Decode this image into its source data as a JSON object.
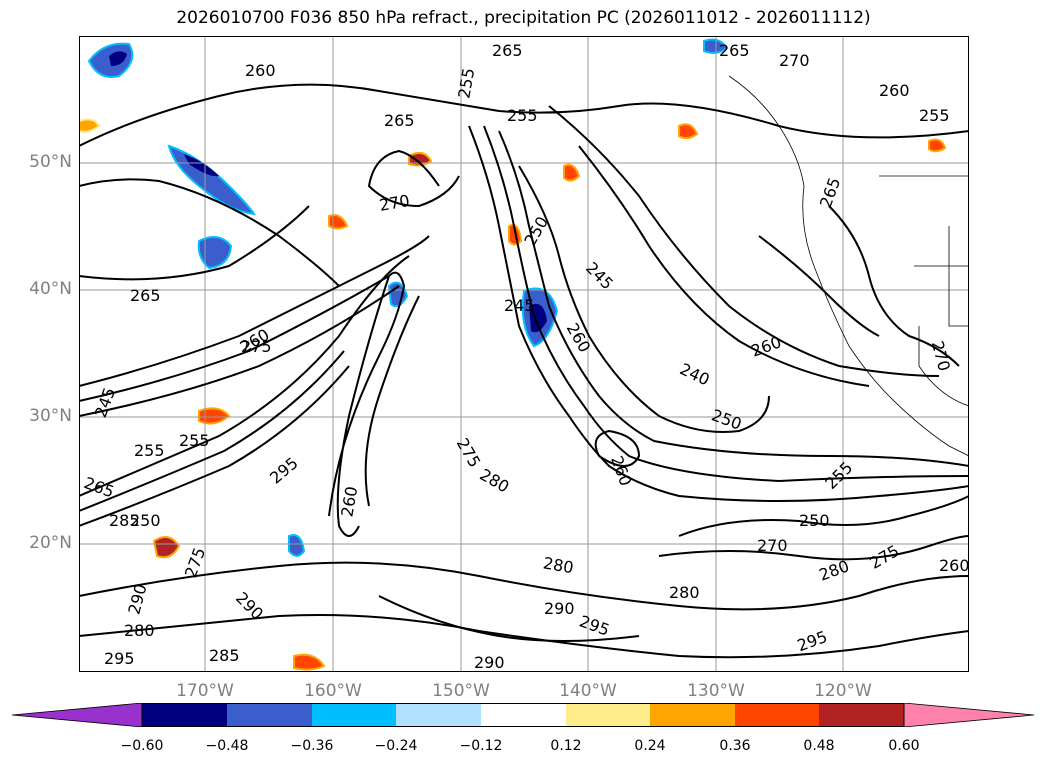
{
  "title": "2026010700 F036 850 hPa refract., precipitation PC (2026011012 - 2026011112)",
  "map": {
    "lat_labels": [
      "50°N",
      "40°N",
      "30°N",
      "20°N"
    ],
    "lon_labels": [
      "170°W",
      "160°W",
      "150°W",
      "140°W",
      "130°W",
      "120°W"
    ],
    "contour_labels": [
      "260",
      "265",
      "255",
      "265",
      "255",
      "270",
      "265",
      "260",
      "270",
      "265",
      "255",
      "260",
      "250",
      "245",
      "245",
      "260",
      "265",
      "275",
      "240",
      "260",
      "250",
      "255",
      "245",
      "250",
      "255",
      "265",
      "260",
      "275",
      "270",
      "295",
      "290",
      "275",
      "280",
      "260",
      "250",
      "255",
      "285",
      "290",
      "280",
      "270",
      "280",
      "275",
      "260",
      "280",
      "290",
      "295",
      "280",
      "290",
      "295",
      "285",
      "295"
    ]
  },
  "colorbar": {
    "colors": [
      "#9932CC",
      "#000080",
      "#3A5FCD",
      "#00BFFF",
      "#B0E2FF",
      "#FFFFFF",
      "#FFEC8B",
      "#FFA500",
      "#FF4500",
      "#B22222",
      "#FF82AB"
    ],
    "ticks": [
      "−0.60",
      "−0.48",
      "−0.36",
      "−0.24",
      "−0.12",
      "0.12",
      "0.24",
      "0.36",
      "0.48",
      "0.60"
    ]
  }
}
